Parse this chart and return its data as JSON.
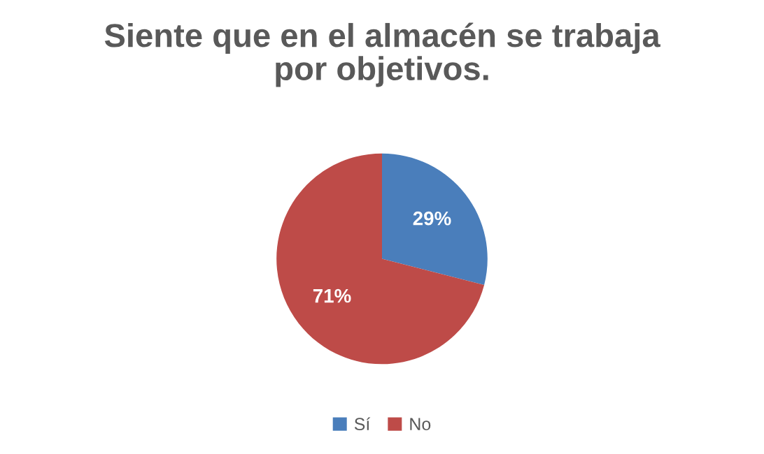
{
  "chart_data": {
    "type": "pie",
    "title": "Siente que en el almacén se trabaja\npor objetivos.",
    "categories": [
      "Sí",
      "No"
    ],
    "values": [
      29,
      71
    ],
    "colors": [
      "#4a7ebb",
      "#be4b48"
    ],
    "value_labels": [
      "29%",
      "71%"
    ],
    "legend": "bottom"
  }
}
